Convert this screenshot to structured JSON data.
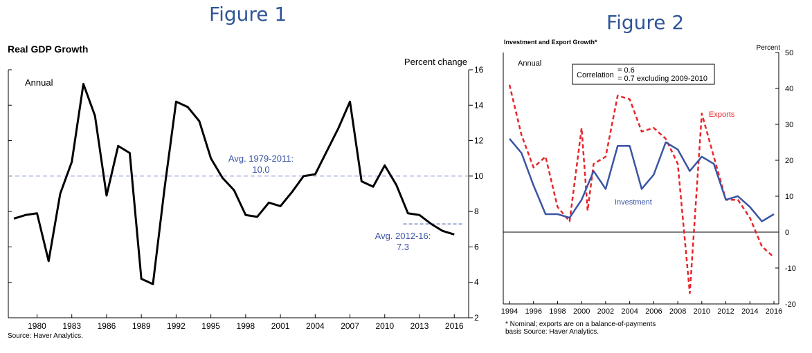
{
  "figures": [
    {
      "label": "Figure 1"
    },
    {
      "label": "Figure 2"
    }
  ],
  "chart_data": [
    {
      "type": "line",
      "title": "Real GDP Growth",
      "frequency_label": "Annual",
      "ylabel": "Percent change",
      "source": "Source: Haver Analytics.",
      "ylim": [
        2,
        16
      ],
      "yticks": [
        2,
        4,
        6,
        8,
        10,
        12,
        14,
        16
      ],
      "xlim": [
        1978,
        2017
      ],
      "xticks": [
        1980,
        1983,
        1986,
        1989,
        1992,
        1995,
        1998,
        2001,
        2004,
        2007,
        2010,
        2013,
        2016
      ],
      "series": [
        {
          "x": [
            1978,
            1979,
            1980,
            1981,
            1982,
            1983,
            1984,
            1985,
            1986,
            1987,
            1988,
            1989,
            1990,
            1991,
            1992,
            1993,
            1994,
            1995,
            1996,
            1997,
            1998,
            1999,
            2000,
            2001,
            2002,
            2003,
            2004,
            2005,
            2006,
            2007,
            2008,
            2009,
            2010,
            2011,
            2012,
            2013,
            2014,
            2015,
            2016
          ],
          "y": [
            7.6,
            7.8,
            7.9,
            5.2,
            9.0,
            10.8,
            15.2,
            13.4,
            8.9,
            11.7,
            11.3,
            4.2,
            3.9,
            9.3,
            14.2,
            13.9,
            13.1,
            11.0,
            9.9,
            9.2,
            7.8,
            7.7,
            8.5,
            8.3,
            9.1,
            10.0,
            10.1,
            11.4,
            12.7,
            14.2,
            9.7,
            9.4,
            10.6,
            9.5,
            7.9,
            7.8,
            7.3,
            6.9,
            6.7
          ]
        }
      ],
      "annotations": [
        {
          "text": "Avg. 1979-2011:",
          "value_text": "10.0",
          "value": 10.0,
          "from": 1978,
          "to": 2011
        },
        {
          "text": "Avg. 2012-16:",
          "value_text": "7.3",
          "value": 7.3,
          "from": 2012,
          "to": 2016
        }
      ]
    },
    {
      "type": "line",
      "title": "Investment and Export Growth*",
      "frequency_label": "Annual",
      "ylabel": "Percent",
      "note": "* Nominal; exports are on a balance-of-payments basis Source: Haver Analytics.",
      "correlation": {
        "label": "Correlation",
        "line1": "= 0.6",
        "line2": "= 0.7 excluding 2009-2010"
      },
      "ylim": [
        -20,
        50
      ],
      "yticks": [
        -20,
        -10,
        0,
        10,
        20,
        30,
        40,
        50
      ],
      "xlim": [
        1994,
        2016
      ],
      "xticks": [
        1994,
        1996,
        1998,
        2000,
        2002,
        2004,
        2006,
        2008,
        2010,
        2012,
        2014,
        2016
      ],
      "series": [
        {
          "name": "Exports",
          "color": "#e8252b",
          "x": [
            1994,
            1995,
            1996,
            1997,
            1998,
            1999,
            2000,
            2000.5,
            2001,
            2002,
            2003,
            2004,
            2005,
            2006,
            2007,
            2008,
            2009,
            2010,
            2011,
            2012,
            2013,
            2014,
            2015,
            2016
          ],
          "y": [
            41,
            27,
            18,
            21,
            7,
            3,
            29,
            6,
            19,
            21,
            38,
            37,
            28,
            29,
            26,
            19,
            -17,
            33,
            21,
            9,
            9,
            4,
            -4,
            -7
          ]
        },
        {
          "name": "Investment",
          "color": "#3a54a4",
          "x": [
            1994,
            1995,
            1996,
            1997,
            1998,
            1999,
            2000,
            2001,
            2002,
            2003,
            2004,
            2005,
            2006,
            2007,
            2008,
            2009,
            2010,
            2011,
            2012,
            2013,
            2014,
            2015,
            2016
          ],
          "y": [
            26,
            22,
            13,
            5,
            5,
            4,
            9,
            17,
            12,
            24,
            24,
            12,
            16,
            25,
            23,
            17,
            21,
            19,
            9,
            10,
            7,
            3,
            5
          ]
        }
      ]
    }
  ]
}
